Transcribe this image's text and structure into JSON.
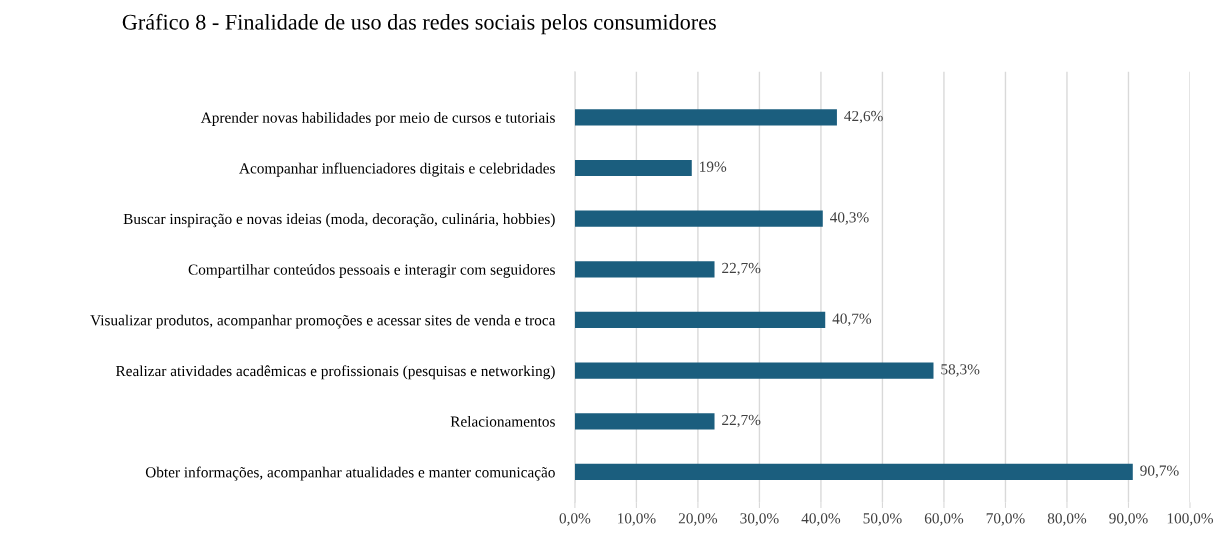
{
  "chart_data": {
    "type": "bar",
    "orientation": "horizontal",
    "title": "Gráfico 8 - Finalidade de uso das redes sociais pelos consumidores",
    "categories": [
      "Aprender novas habilidades por meio de cursos e tutoriais",
      "Acompanhar influenciadores digitais e celebridades",
      "Buscar inspiração e novas ideias (moda, decoração, culinária, hobbies)",
      "Compartilhar conteúdos pessoais e interagir com seguidores",
      "Visualizar produtos, acompanhar promoções e acessar sites de venda e troca",
      "Realizar atividades acadêmicas e profissionais (pesquisas e networking)",
      "Relacionamentos",
      "Obter informações, acompanhar atualidades e manter comunicação"
    ],
    "values": [
      42.6,
      19,
      40.3,
      22.7,
      40.7,
      58.3,
      22.7,
      90.7
    ],
    "value_labels": [
      "42,6%",
      "19%",
      "40,3%",
      "22,7%",
      "40,7%",
      "58,3%",
      "22,7%",
      "90,7%"
    ],
    "color": "#1b5e7e",
    "xlim": [
      0,
      100
    ],
    "xticks": [
      {
        "value": 0,
        "label": "0,0%"
      },
      {
        "value": 10,
        "label": "10,0%"
      },
      {
        "value": 20,
        "label": "20,0%"
      },
      {
        "value": 30,
        "label": "30,0%"
      },
      {
        "value": 40,
        "label": "40,0%"
      },
      {
        "value": 50,
        "label": "50,0%"
      },
      {
        "value": 60,
        "label": "60,0%"
      },
      {
        "value": 70,
        "label": "70,0%"
      },
      {
        "value": 80,
        "label": "80,0%"
      },
      {
        "value": 90,
        "label": "90,0%"
      },
      {
        "value": 100,
        "label": "100,0%"
      }
    ],
    "grid": "x",
    "legend": false
  }
}
